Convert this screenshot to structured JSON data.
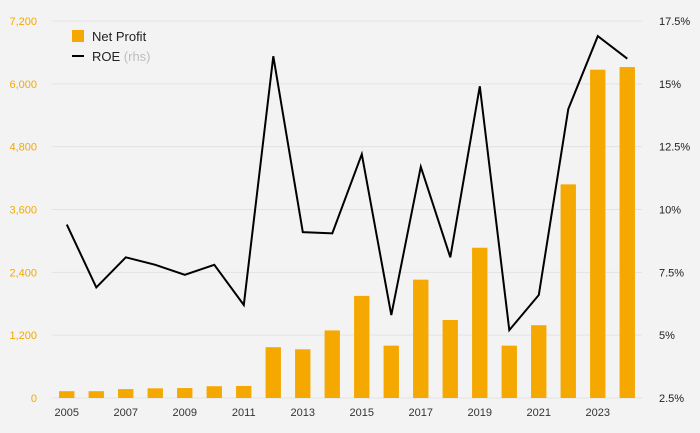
{
  "chart_data": {
    "type": "bar+line",
    "x": [
      2005,
      2006,
      2007,
      2008,
      2009,
      2010,
      2011,
      2012,
      2013,
      2014,
      2015,
      2016,
      2017,
      2018,
      2019,
      2020,
      2021,
      2022,
      2023,
      2024
    ],
    "x_tick_labels": [
      "2005",
      "2007",
      "2009",
      "2011",
      "2013",
      "2015",
      "2017",
      "2019",
      "2021",
      "2023"
    ],
    "series": [
      {
        "name": "Net Profit",
        "axis": "left",
        "kind": "bar",
        "color": "#f5a800",
        "values": [
          130,
          130,
          170,
          185,
          190,
          225,
          230,
          970,
          930,
          1290,
          1950,
          1000,
          2260,
          1490,
          2870,
          1000,
          1390,
          4080,
          6270,
          6320
        ]
      },
      {
        "name": "ROE",
        "name_suffix": " (rhs)",
        "axis": "right",
        "kind": "line",
        "color": "#000000",
        "values": [
          9.4,
          6.9,
          8.1,
          7.8,
          7.4,
          7.8,
          6.2,
          16.1,
          9.1,
          9.05,
          12.2,
          5.8,
          11.7,
          8.1,
          14.9,
          5.2,
          6.6,
          14.0,
          16.9,
          16.0
        ]
      }
    ],
    "y_left": {
      "ylim": [
        0,
        7200
      ],
      "ticks": [
        0,
        1200,
        2400,
        3600,
        4800,
        6000,
        7200
      ],
      "tick_labels": [
        "0",
        "1,200",
        "2,400",
        "3,600",
        "4,800",
        "6,000",
        "7,200"
      ]
    },
    "y_right": {
      "ylim": [
        2.5,
        17.5
      ],
      "ticks": [
        2.5,
        5,
        7.5,
        10,
        12.5,
        15,
        17.5
      ],
      "tick_labels": [
        "2.5%",
        "5%",
        "7.5%",
        "10%",
        "12.5%",
        "15%",
        "17.5%"
      ]
    },
    "grid": true,
    "legend_position": "top-left",
    "colors": {
      "bar": "#f5a800",
      "line": "#000000",
      "left_tick": "#f5a800",
      "right_tick": "#222222",
      "background": "#f3f3f3"
    }
  }
}
